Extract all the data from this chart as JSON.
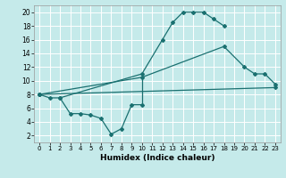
{
  "xlabel": "Humidex (Indice chaleur)",
  "bg_color": "#c5eaea",
  "line_color": "#1a7070",
  "xlim": [
    -0.5,
    23.5
  ],
  "ylim": [
    1,
    21
  ],
  "ytick_vals": [
    2,
    4,
    6,
    8,
    10,
    12,
    14,
    16,
    18,
    20
  ],
  "xtick_vals": [
    0,
    1,
    2,
    3,
    4,
    5,
    6,
    7,
    8,
    9,
    10,
    11,
    12,
    13,
    14,
    15,
    16,
    17,
    18,
    19,
    20,
    21,
    22,
    23
  ],
  "curve1_x": [
    0,
    1,
    2,
    10,
    12,
    13,
    14,
    15,
    16,
    17,
    18
  ],
  "curve1_y": [
    8.0,
    7.5,
    7.5,
    11.0,
    16.0,
    18.5,
    20.0,
    20.0,
    20.0,
    19.0,
    18.0
  ],
  "curve2_x": [
    0,
    10,
    18,
    20,
    21,
    22,
    23
  ],
  "curve2_y": [
    8.0,
    10.5,
    15.0,
    12.0,
    11.0,
    11.0,
    9.5
  ],
  "curve3_x": [
    2,
    3,
    4,
    5,
    6,
    7,
    8,
    9,
    10
  ],
  "curve3_y": [
    7.5,
    5.2,
    5.2,
    5.0,
    4.5,
    2.2,
    3.0,
    6.5,
    6.5
  ],
  "curve4_x": [
    0,
    23
  ],
  "curve4_y": [
    8.0,
    9.0
  ]
}
